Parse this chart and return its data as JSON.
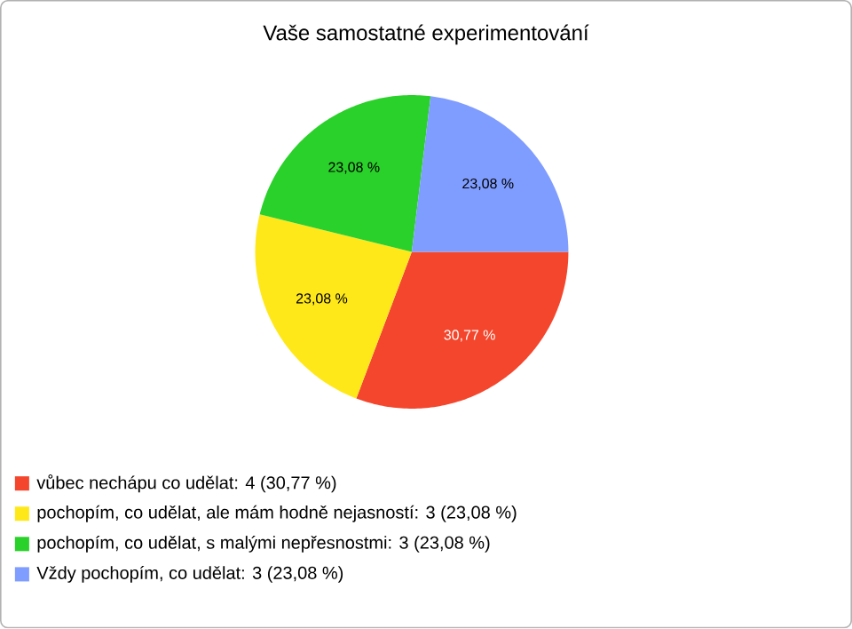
{
  "chart_data": {
    "type": "pie",
    "title": "Vaše samostatné experimentování",
    "categories": [
      "vůbec nechápu co udělat: 4 (30,77 %)",
      "pochopím, co udělat, ale mám hodně nejasností: 3 (23,08 %)",
      "pochopím, co udělat, s malými nepřesnostmi: 3 (23,08 %)",
      "Vždy pochopím, co udělat: 3 (23,08 %)"
    ],
    "values": [
      30.77,
      23.08,
      23.08,
      23.08
    ],
    "value_labels": [
      "30,77 %",
      "23,08 %",
      "23,08 %",
      "23,08 %"
    ],
    "colors": [
      "#f4462c",
      "#ffe81a",
      "#2ad12a",
      "#7f9cff"
    ],
    "legend": "bottom"
  }
}
